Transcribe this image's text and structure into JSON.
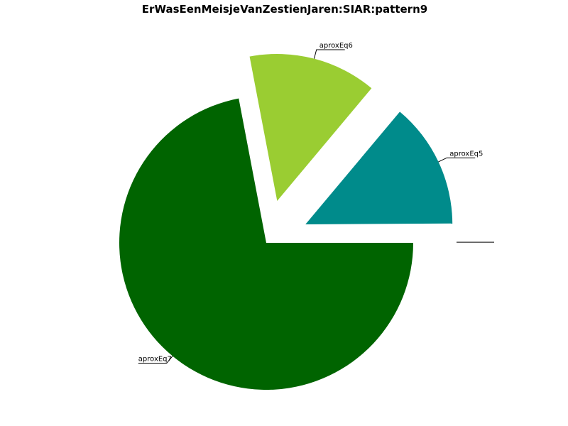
{
  "chart_data": {
    "type": "pie",
    "title": "ErWasEenMeisjeVanZestienJaren:SIAR:pattern9",
    "slices": [
      {
        "label": "",
        "value": 0.1,
        "color": "#ffffff",
        "exploded": true
      },
      {
        "label": "aproxEq5",
        "value": 13.8,
        "color": "#008b8b",
        "exploded": true
      },
      {
        "label": "aproxEq6",
        "value": 14.1,
        "color": "#9acd32",
        "exploded": true
      },
      {
        "label": "aproxEq7",
        "value": 72.0,
        "color": "#006400",
        "exploded": false
      }
    ]
  }
}
